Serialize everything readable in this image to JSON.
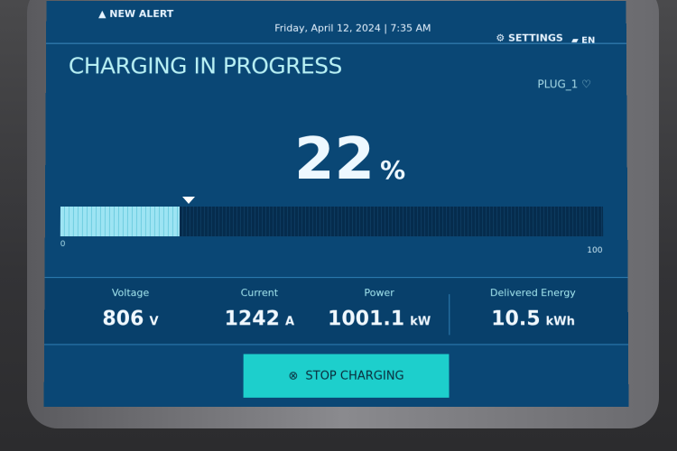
{
  "header": {
    "alert_label": "NEW ALERT",
    "datetime": "Friday, April 12, 2024 | 7:35 AM",
    "settings_label": "SETTINGS",
    "language": "EN"
  },
  "main": {
    "title": "CHARGING IN PROGRESS",
    "plug": "PLUG_1",
    "progress_value": "22",
    "progress_unit": "%",
    "progress_percent": 22,
    "scale_min": "0",
    "scale_max": "100"
  },
  "stats": [
    {
      "label": "Voltage",
      "value": "806",
      "unit": "V"
    },
    {
      "label": "Current",
      "value": "1242",
      "unit": "A"
    },
    {
      "label": "Power",
      "value": "1001.1",
      "unit": "kW"
    },
    {
      "label": "Delivered Energy",
      "value": "10.5",
      "unit": "kWh"
    }
  ],
  "actions": {
    "stop_label": "STOP CHARGING"
  },
  "colors": {
    "accent": "#1dcfcc",
    "background": "#0a4775",
    "progress_fill": "#9de4f3"
  }
}
